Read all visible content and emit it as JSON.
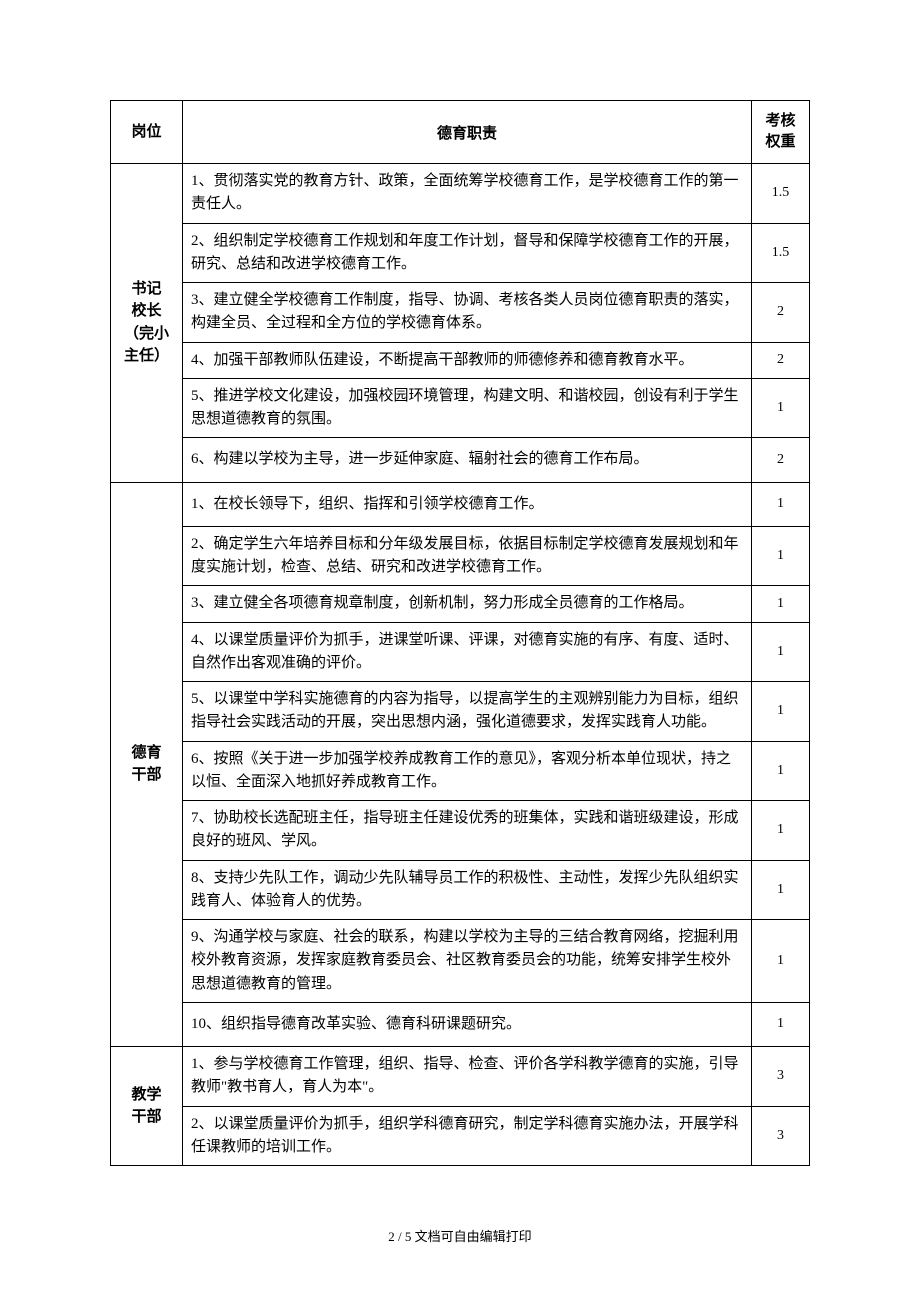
{
  "table": {
    "headers": {
      "position": "岗位",
      "duty": "德育职责",
      "weight": "考核\n权重"
    },
    "groups": [
      {
        "position": "书记\n校长\n（完小\n主任）",
        "rows": [
          {
            "duty": "1、贯彻落实党的教育方针、政策，全面统筹学校德育工作，是学校德育工作的第一责任人。",
            "weight": "1.5"
          },
          {
            "duty": "2、组织制定学校德育工作规划和年度工作计划，督导和保障学校德育工作的开展，研究、总结和改进学校德育工作。",
            "weight": "1.5"
          },
          {
            "duty": "3、建立健全学校德育工作制度，指导、协调、考核各类人员岗位德育职责的落实，构建全员、全过程和全方位的学校德育体系。",
            "weight": "2"
          },
          {
            "duty": "4、加强干部教师队伍建设，不断提高干部教师的师德修养和德育教育水平。",
            "weight": "2"
          },
          {
            "duty": "5、推进学校文化建设，加强校园环境管理，构建文明、和谐校园，创设有利于学生思想道德教育的氛围。",
            "weight": "1"
          },
          {
            "duty": "6、构建以学校为主导，进一步延伸家庭、辐射社会的德育工作布局。",
            "weight": "2",
            "single": true
          }
        ]
      },
      {
        "position": "德育\n干部",
        "rows": [
          {
            "duty": "1、在校长领导下，组织、指挥和引领学校德育工作。",
            "weight": "1",
            "single": true
          },
          {
            "duty": "2、确定学生六年培养目标和分年级发展目标，依据目标制定学校德育发展规划和年度实施计划，检查、总结、研究和改进学校德育工作。",
            "weight": "1"
          },
          {
            "duty": "3、建立健全各项德育规章制度，创新机制，努力形成全员德育的工作格局。",
            "weight": "1"
          },
          {
            "duty": "4、以课堂质量评价为抓手，进课堂听课、评课，对德育实施的有序、有度、适时、自然作出客观准确的评价。",
            "weight": "1"
          },
          {
            "duty": "5、以课堂中学科实施德育的内容为指导，以提高学生的主观辨别能力为目标，组织指导社会实践活动的开展，突出思想内涵，强化道德要求，发挥实践育人功能。",
            "weight": "1"
          },
          {
            "duty": "6、按照《关于进一步加强学校养成教育工作的意见》，客观分析本单位现状，持之以恒、全面深入地抓好养成教育工作。",
            "weight": "1"
          },
          {
            "duty": "7、协助校长选配班主任，指导班主任建设优秀的班集体，实践和谐班级建设，形成良好的班风、学风。",
            "weight": "1"
          },
          {
            "duty": "8、支持少先队工作，调动少先队辅导员工作的积极性、主动性，发挥少先队组织实践育人、体验育人的优势。",
            "weight": "1"
          },
          {
            "duty": "9、沟通学校与家庭、社会的联系，构建以学校为主导的三结合教育网络，挖掘利用校外教育资源，发挥家庭教育委员会、社区教育委员会的功能，统筹安排学生校外思想道德教育的管理。",
            "weight": "1"
          },
          {
            "duty": "10、组织指导德育改革实验、德育科研课题研究。",
            "weight": "1",
            "single": true
          }
        ]
      },
      {
        "position": "教学\n干部",
        "rows": [
          {
            "duty": "1、参与学校德育工作管理，组织、指导、检查、评价各学科教学德育的实施，引导教师\"教书育人，育人为本\"。",
            "weight": "3"
          },
          {
            "duty": "2、以课堂质量评价为抓手，组织学科德育研究，制定学科德育实施办法，开展学科任课教师的培训工作。",
            "weight": "3"
          }
        ]
      }
    ]
  },
  "footer": {
    "page": "2 / 5",
    "note": " 文档可自由编辑打印"
  }
}
